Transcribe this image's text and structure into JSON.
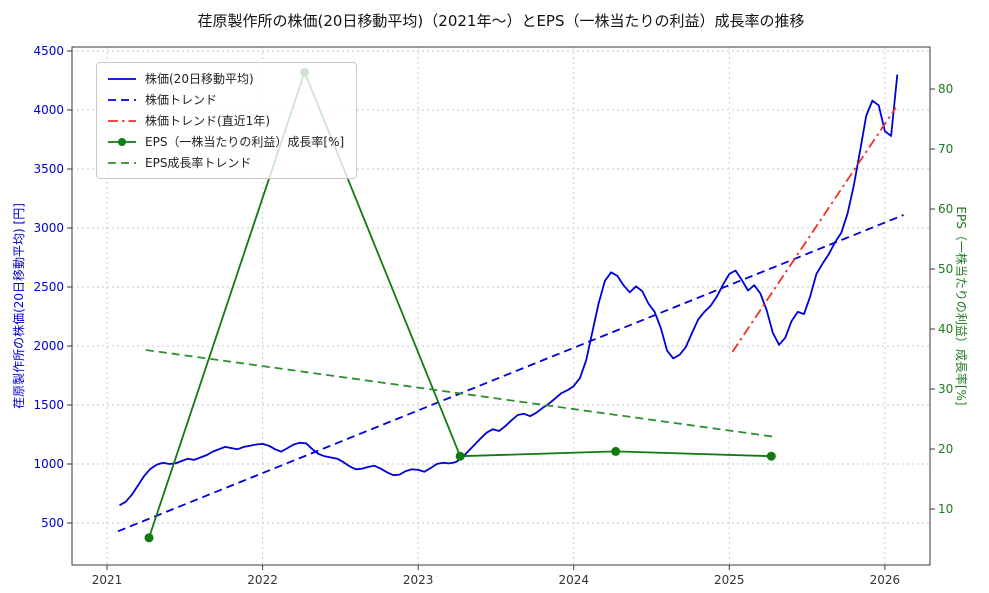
{
  "title": "荏原製作所の株価(20日移動平均)（2021年～）とEPS（一株当たりの利益）成長率の推移",
  "colors": {
    "background": "#ffffff",
    "stock_blue": "#0000dd",
    "trend_red": "#ee3227",
    "eps_green": "#117a11",
    "eps_trend_green": "#2f8f2f",
    "left_axis_text": "#0000cc",
    "right_axis_text": "#217a21"
  },
  "left_axis": {
    "label": "荏原製作所の株価(20日移動平均) [円]",
    "ticks": [
      500,
      1000,
      1500,
      2000,
      2500,
      3000,
      3500,
      4000,
      4500
    ]
  },
  "right_axis": {
    "label": "EPS（一株当たりの利益）成長率[%]",
    "ticks": [
      10,
      20,
      30,
      40,
      50,
      60,
      70,
      80
    ]
  },
  "x_axis": {
    "ticks": [
      2021,
      2022,
      2023,
      2024,
      2025,
      2026
    ]
  },
  "chart_data": {
    "type": "line",
    "title": "荏原製作所の株価(20日移動平均)（2021年～）とEPS（一株当たりの利益）成長率の推移",
    "x_range": [
      2020.775,
      2026.29
    ],
    "left_ylim": [
      144,
      4534
    ],
    "right_ylim": [
      0.67,
      87
    ],
    "grid": true,
    "legend_position": "upper-left",
    "series": [
      {
        "name": "株価(20日移動平均)",
        "axis": "left",
        "style": "solid",
        "color": "#0000dd",
        "marker": false,
        "points": [
          [
            2021.08,
            650
          ],
          [
            2021.12,
            680
          ],
          [
            2021.16,
            740
          ],
          [
            2021.2,
            820
          ],
          [
            2021.24,
            900
          ],
          [
            2021.28,
            960
          ],
          [
            2021.32,
            995
          ],
          [
            2021.36,
            1010
          ],
          [
            2021.4,
            1000
          ],
          [
            2021.44,
            1005
          ],
          [
            2021.48,
            1025
          ],
          [
            2021.52,
            1045
          ],
          [
            2021.56,
            1035
          ],
          [
            2021.6,
            1055
          ],
          [
            2021.64,
            1075
          ],
          [
            2021.68,
            1105
          ],
          [
            2021.72,
            1125
          ],
          [
            2021.76,
            1145
          ],
          [
            2021.8,
            1135
          ],
          [
            2021.84,
            1125
          ],
          [
            2021.88,
            1145
          ],
          [
            2021.92,
            1155
          ],
          [
            2021.96,
            1165
          ],
          [
            2022.0,
            1170
          ],
          [
            2022.04,
            1155
          ],
          [
            2022.08,
            1125
          ],
          [
            2022.12,
            1105
          ],
          [
            2022.16,
            1135
          ],
          [
            2022.2,
            1165
          ],
          [
            2022.24,
            1180
          ],
          [
            2022.28,
            1175
          ],
          [
            2022.32,
            1125
          ],
          [
            2022.36,
            1085
          ],
          [
            2022.4,
            1065
          ],
          [
            2022.44,
            1055
          ],
          [
            2022.48,
            1045
          ],
          [
            2022.52,
            1015
          ],
          [
            2022.56,
            980
          ],
          [
            2022.6,
            955
          ],
          [
            2022.64,
            960
          ],
          [
            2022.68,
            975
          ],
          [
            2022.72,
            985
          ],
          [
            2022.76,
            960
          ],
          [
            2022.8,
            930
          ],
          [
            2022.84,
            905
          ],
          [
            2022.88,
            910
          ],
          [
            2022.92,
            940
          ],
          [
            2022.96,
            955
          ],
          [
            2023.0,
            950
          ],
          [
            2023.04,
            935
          ],
          [
            2023.08,
            965
          ],
          [
            2023.12,
            1000
          ],
          [
            2023.16,
            1010
          ],
          [
            2023.2,
            1005
          ],
          [
            2023.24,
            1015
          ],
          [
            2023.28,
            1050
          ],
          [
            2023.32,
            1105
          ],
          [
            2023.36,
            1160
          ],
          [
            2023.4,
            1215
          ],
          [
            2023.44,
            1265
          ],
          [
            2023.48,
            1295
          ],
          [
            2023.52,
            1280
          ],
          [
            2023.56,
            1320
          ],
          [
            2023.6,
            1370
          ],
          [
            2023.64,
            1415
          ],
          [
            2023.68,
            1425
          ],
          [
            2023.72,
            1405
          ],
          [
            2023.76,
            1435
          ],
          [
            2023.8,
            1475
          ],
          [
            2023.84,
            1510
          ],
          [
            2023.88,
            1555
          ],
          [
            2023.92,
            1600
          ],
          [
            2023.96,
            1625
          ],
          [
            2024.0,
            1660
          ],
          [
            2024.04,
            1730
          ],
          [
            2024.08,
            1880
          ],
          [
            2024.12,
            2120
          ],
          [
            2024.16,
            2360
          ],
          [
            2024.2,
            2550
          ],
          [
            2024.24,
            2625
          ],
          [
            2024.28,
            2595
          ],
          [
            2024.32,
            2515
          ],
          [
            2024.36,
            2455
          ],
          [
            2024.4,
            2505
          ],
          [
            2024.44,
            2465
          ],
          [
            2024.48,
            2360
          ],
          [
            2024.52,
            2290
          ],
          [
            2024.56,
            2150
          ],
          [
            2024.6,
            1960
          ],
          [
            2024.64,
            1895
          ],
          [
            2024.68,
            1925
          ],
          [
            2024.72,
            1990
          ],
          [
            2024.76,
            2110
          ],
          [
            2024.8,
            2225
          ],
          [
            2024.84,
            2290
          ],
          [
            2024.88,
            2340
          ],
          [
            2024.92,
            2420
          ],
          [
            2024.96,
            2520
          ],
          [
            2025.0,
            2610
          ],
          [
            2025.04,
            2640
          ],
          [
            2025.08,
            2560
          ],
          [
            2025.12,
            2470
          ],
          [
            2025.16,
            2515
          ],
          [
            2025.2,
            2445
          ],
          [
            2025.24,
            2305
          ],
          [
            2025.28,
            2110
          ],
          [
            2025.32,
            2010
          ],
          [
            2025.36,
            2070
          ],
          [
            2025.4,
            2210
          ],
          [
            2025.44,
            2290
          ],
          [
            2025.48,
            2270
          ],
          [
            2025.52,
            2420
          ],
          [
            2025.56,
            2610
          ],
          [
            2025.6,
            2700
          ],
          [
            2025.64,
            2780
          ],
          [
            2025.68,
            2880
          ],
          [
            2025.72,
            2960
          ],
          [
            2025.76,
            3120
          ],
          [
            2025.8,
            3360
          ],
          [
            2025.84,
            3650
          ],
          [
            2025.88,
            3950
          ],
          [
            2025.92,
            4080
          ],
          [
            2025.96,
            4040
          ],
          [
            2026.0,
            3820
          ],
          [
            2026.04,
            3780
          ],
          [
            2026.08,
            4300
          ]
        ]
      },
      {
        "name": "株価トレンド",
        "axis": "left",
        "style": "dashed",
        "color": "#0000dd",
        "marker": false,
        "points": [
          [
            2021.07,
            430
          ],
          [
            2026.12,
            3110
          ]
        ]
      },
      {
        "name": "株価トレンド(直近1年)",
        "axis": "left",
        "style": "dashdot",
        "color": "#ee3227",
        "marker": false,
        "points": [
          [
            2025.02,
            1950
          ],
          [
            2026.07,
            4020
          ]
        ]
      },
      {
        "name": "EPS（一株当たりの利益）成長率[%]",
        "axis": "right",
        "style": "solid",
        "color": "#117a11",
        "marker": true,
        "points": [
          [
            2021.27,
            5.2
          ],
          [
            2022.27,
            82.8
          ],
          [
            2023.27,
            18.8
          ],
          [
            2024.27,
            19.6
          ],
          [
            2025.27,
            18.8
          ]
        ]
      },
      {
        "name": "EPS成長率トレンド",
        "axis": "right",
        "style": "dashed",
        "color": "#2f8f2f",
        "marker": false,
        "points": [
          [
            2021.25,
            36.5
          ],
          [
            2025.3,
            22
          ]
        ]
      }
    ]
  }
}
